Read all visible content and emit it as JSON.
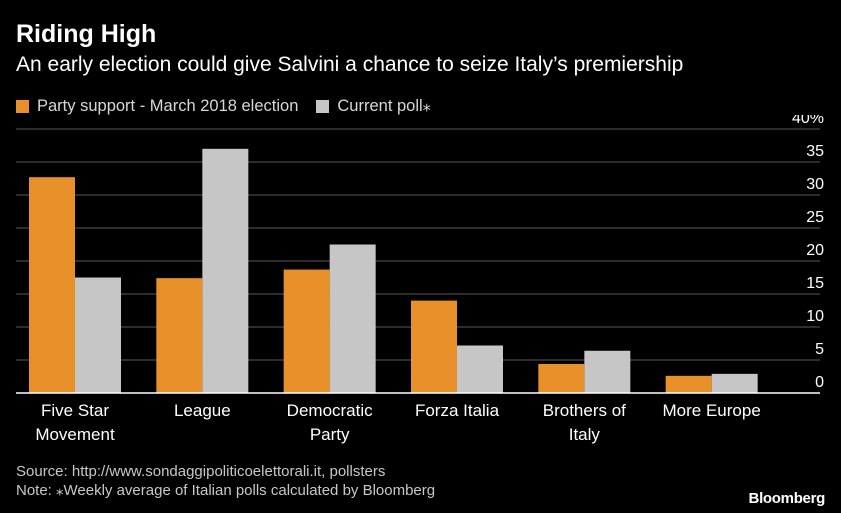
{
  "header": {
    "title": "Riding High",
    "subtitle": "An early election could give Salvini a chance to seize Italy’s premiership"
  },
  "colors": {
    "series1": "#e8902a",
    "series2": "#c6c6c6",
    "grid": "#5a5a5a",
    "axis": "#ffffff",
    "text": "#ffffff"
  },
  "chart_data": {
    "type": "bar",
    "title": "Riding High",
    "xlabel": "",
    "ylabel": "",
    "ylim": [
      0,
      40
    ],
    "yticks": [
      0,
      5,
      10,
      15,
      20,
      25,
      30,
      35,
      40
    ],
    "ytick_labels": [
      "0",
      "5",
      "10",
      "15",
      "20",
      "25",
      "30",
      "35",
      "40%"
    ],
    "grid": true,
    "legend_position": "top-left",
    "categories": [
      [
        "Five Star",
        "Movement"
      ],
      [
        "League"
      ],
      [
        "Democratic",
        "Party"
      ],
      [
        "Forza Italia"
      ],
      [
        "Brothers of",
        "Italy"
      ],
      [
        "More Europe"
      ]
    ],
    "series": [
      {
        "name": "Party support - March 2018 election",
        "values": [
          32.7,
          17.4,
          18.7,
          14.0,
          4.4,
          2.6
        ]
      },
      {
        "name": "Current poll⁎",
        "values": [
          17.5,
          37.0,
          22.5,
          7.2,
          6.4,
          2.9
        ]
      }
    ]
  },
  "footer": {
    "source": "Source: http://www.sondaggipoliticoelettorali.it, pollsters",
    "note": "Note: ⁎Weekly average of Italian polls calculated by Bloomberg",
    "brand": "Bloomberg"
  }
}
